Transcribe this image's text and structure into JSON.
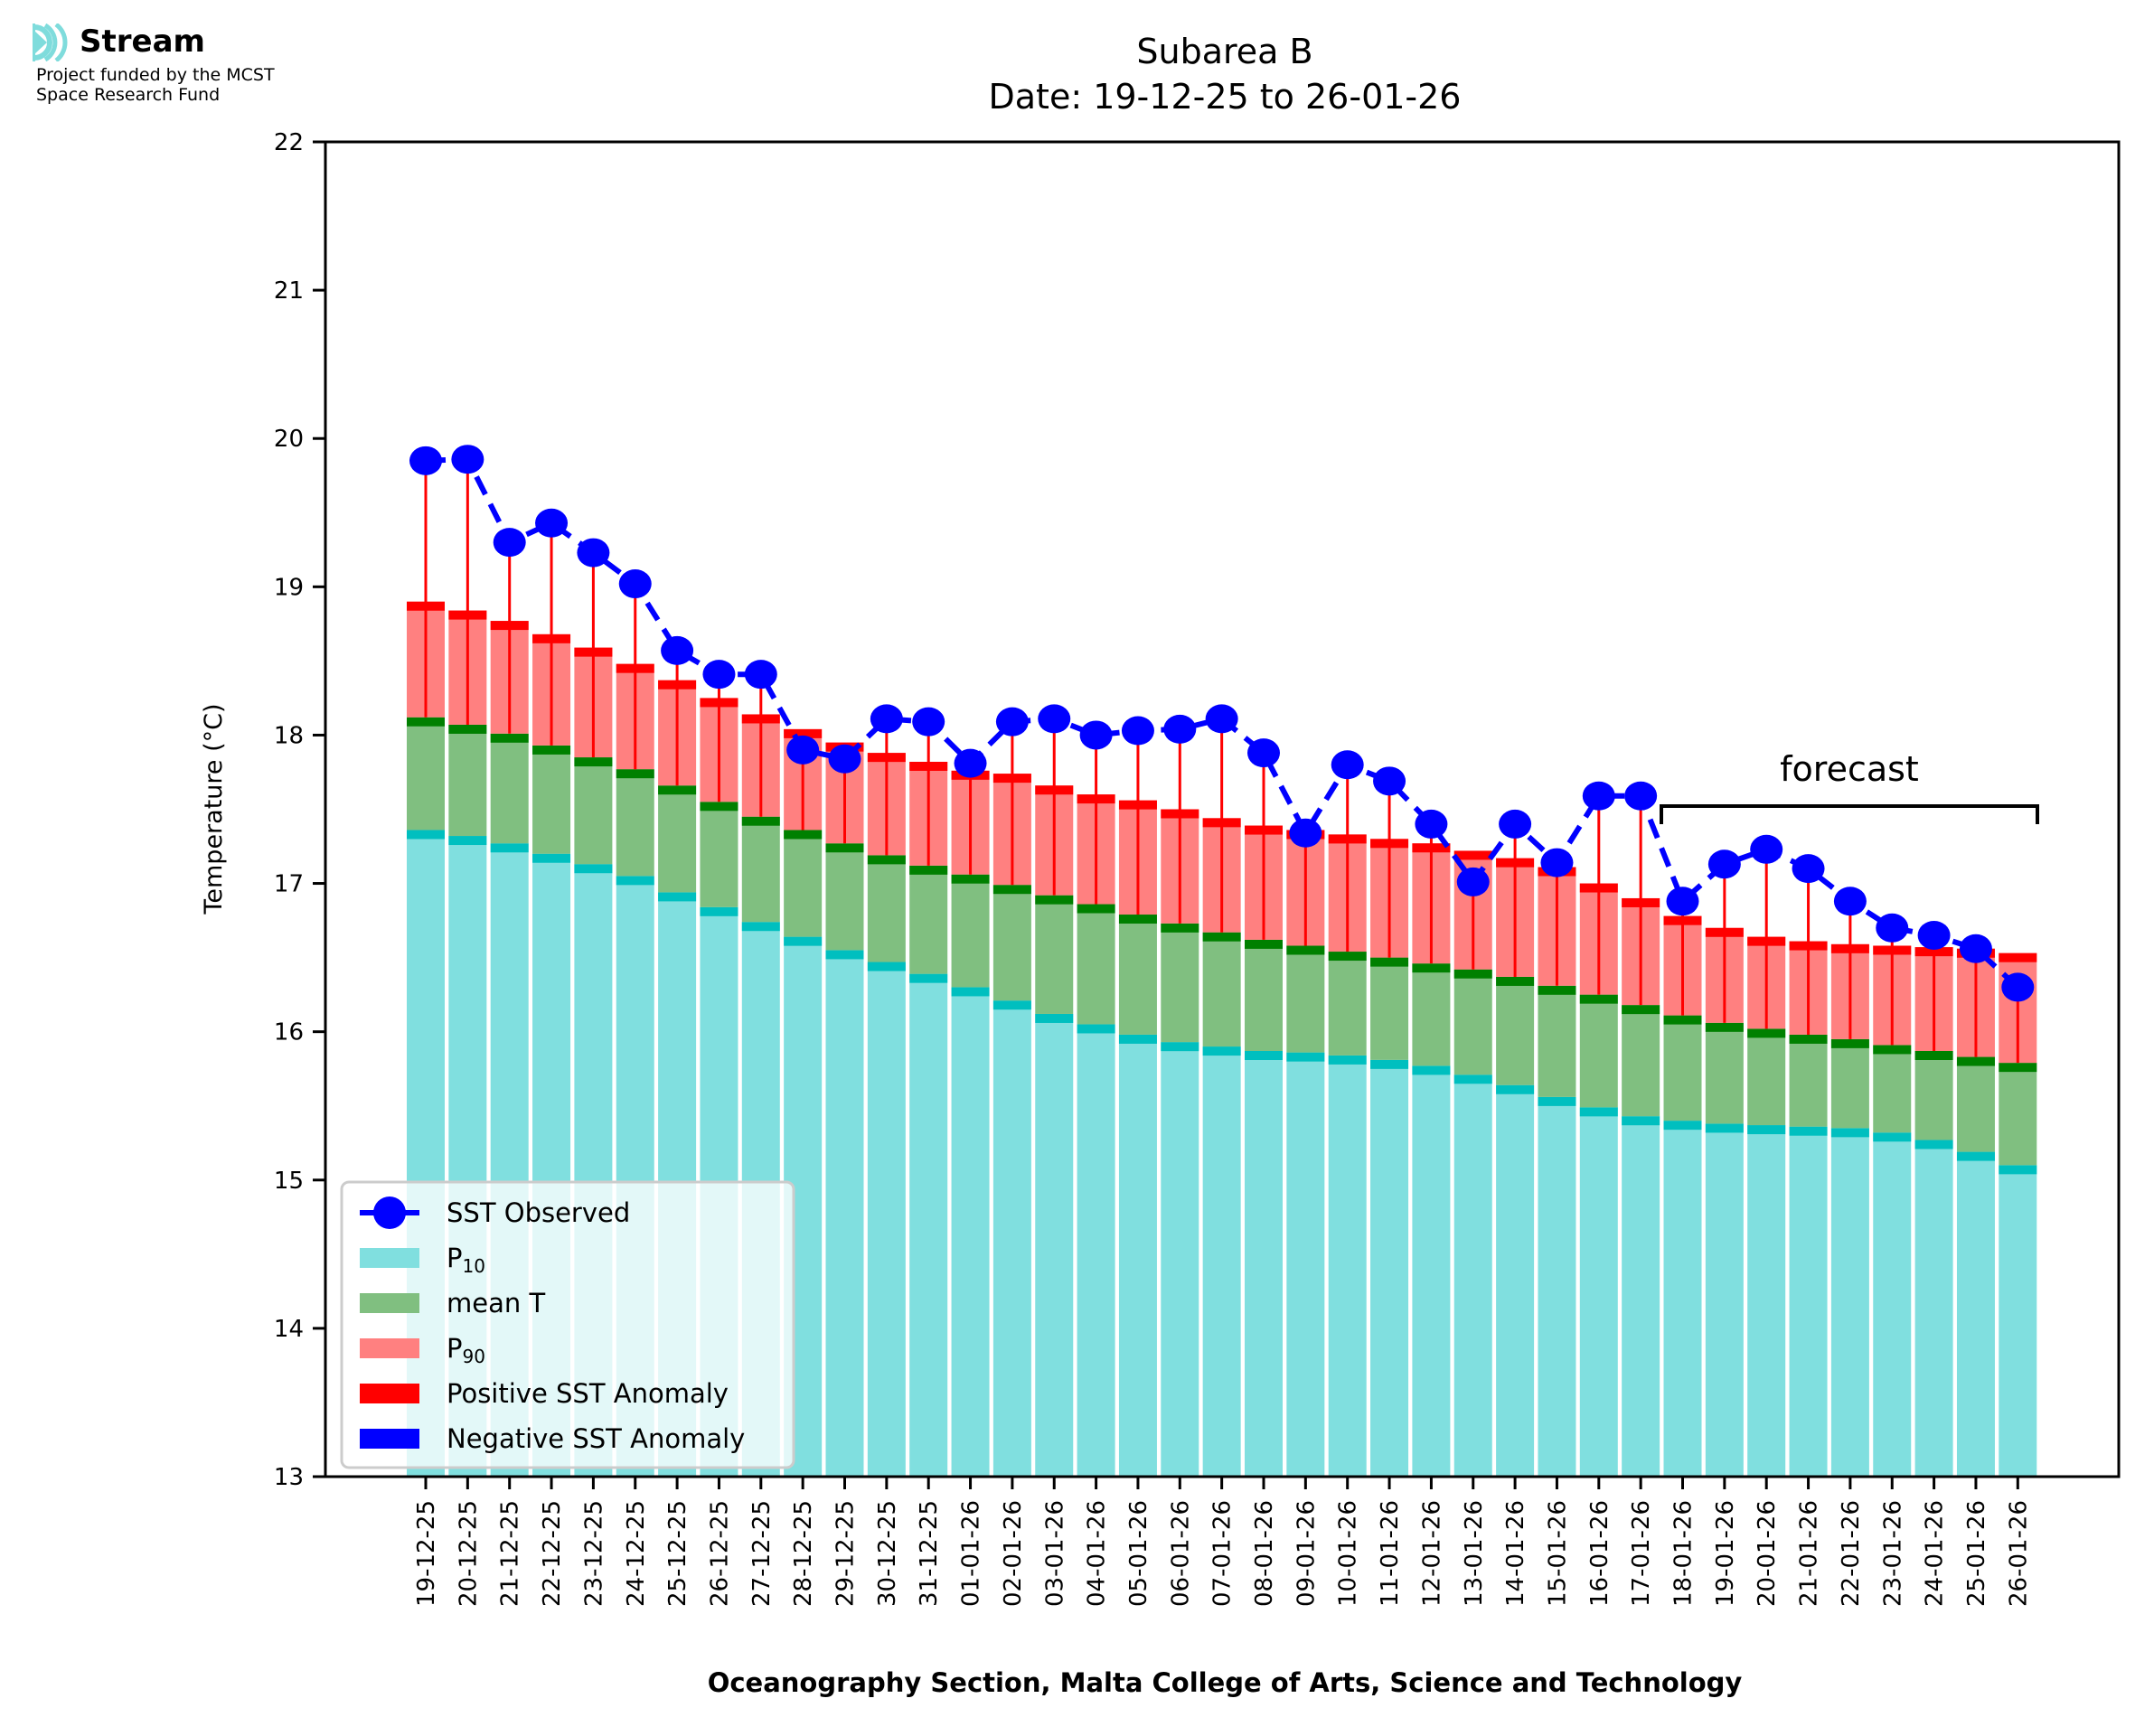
{
  "branding": {
    "logo_icon": "stream-waves-icon",
    "title": "Stream",
    "subtitle_line1": "Project funded by the MCST",
    "subtitle_line2": "Space Research Fund"
  },
  "colors": {
    "p10": "#80dfdf",
    "p10_band": "#00bfbf",
    "mean": "#80bf80",
    "mean_band": "#008000",
    "p90": "#ff8080",
    "p90_band": "#ff0000",
    "sst": "#0000ff",
    "positive_anomaly": "#ff0000",
    "negative_anomaly": "#0000ff",
    "logo": "#7fdcdc"
  },
  "chart_data": {
    "type": "bar",
    "title_line1": "Subarea B",
    "title_line2": "Date: 19-12-25 to 26-01-26",
    "xlabel": "Oceanography Section, Malta College of Arts, Science and Technology",
    "ylabel": "Temperature (°C)",
    "ylim": [
      13,
      22
    ],
    "yticks": [
      13,
      14,
      15,
      16,
      17,
      18,
      19,
      20,
      21,
      22
    ],
    "grid": false,
    "legend_position": "lower-left",
    "annotation": {
      "text": "forecast",
      "from": "18-01-26",
      "to": "26-01-26"
    },
    "categories": [
      "19-12-25",
      "20-12-25",
      "21-12-25",
      "22-12-25",
      "23-12-25",
      "24-12-25",
      "25-12-25",
      "26-12-25",
      "27-12-25",
      "28-12-25",
      "29-12-25",
      "30-12-25",
      "31-12-25",
      "01-01-26",
      "02-01-26",
      "03-01-26",
      "04-01-26",
      "05-01-26",
      "06-01-26",
      "07-01-26",
      "08-01-26",
      "09-01-26",
      "10-01-26",
      "11-01-26",
      "12-01-26",
      "13-01-26",
      "14-01-26",
      "15-01-26",
      "16-01-26",
      "17-01-26",
      "18-01-26",
      "19-01-26",
      "20-01-26",
      "21-01-26",
      "22-01-26",
      "23-01-26",
      "24-01-26",
      "25-01-26",
      "26-01-26"
    ],
    "series": [
      {
        "name": "P10",
        "legend_label": "P",
        "legend_sub": "10",
        "values": [
          17.36,
          17.32,
          17.27,
          17.2,
          17.13,
          17.05,
          16.94,
          16.84,
          16.74,
          16.64,
          16.55,
          16.47,
          16.39,
          16.3,
          16.21,
          16.12,
          16.05,
          15.98,
          15.93,
          15.9,
          15.87,
          15.86,
          15.84,
          15.81,
          15.77,
          15.71,
          15.64,
          15.56,
          15.49,
          15.43,
          15.4,
          15.38,
          15.37,
          15.36,
          15.35,
          15.32,
          15.27,
          15.19,
          15.1
        ]
      },
      {
        "name": "mean T",
        "legend_label": "mean T",
        "legend_sub": "",
        "values": [
          18.12,
          18.07,
          18.01,
          17.93,
          17.85,
          17.77,
          17.66,
          17.55,
          17.45,
          17.36,
          17.27,
          17.19,
          17.12,
          17.06,
          16.99,
          16.92,
          16.86,
          16.79,
          16.73,
          16.67,
          16.62,
          16.58,
          16.54,
          16.5,
          16.46,
          16.42,
          16.37,
          16.31,
          16.25,
          16.18,
          16.11,
          16.06,
          16.02,
          15.98,
          15.95,
          15.91,
          15.87,
          15.83,
          15.79
        ]
      },
      {
        "name": "P90",
        "legend_label": "P",
        "legend_sub": "90",
        "values": [
          18.9,
          18.84,
          18.77,
          18.68,
          18.59,
          18.48,
          18.37,
          18.25,
          18.14,
          18.04,
          17.95,
          17.88,
          17.82,
          17.76,
          17.74,
          17.66,
          17.6,
          17.56,
          17.5,
          17.44,
          17.39,
          17.36,
          17.33,
          17.3,
          17.27,
          17.22,
          17.17,
          17.11,
          17.0,
          16.9,
          16.78,
          16.7,
          16.64,
          16.61,
          16.59,
          16.58,
          16.57,
          16.56,
          16.53
        ]
      },
      {
        "name": "SST Observed",
        "legend_label": "SST Observed",
        "legend_sub": "",
        "values": [
          19.85,
          19.86,
          19.3,
          19.43,
          19.23,
          19.02,
          18.57,
          18.41,
          18.41,
          17.9,
          17.84,
          18.11,
          18.09,
          17.81,
          18.09,
          18.11,
          18.0,
          18.03,
          18.04,
          18.11,
          17.88,
          17.34,
          17.8,
          17.69,
          17.4,
          17.01,
          17.4,
          17.14,
          17.59,
          17.59,
          16.88,
          17.13,
          17.23,
          17.1,
          16.88,
          16.7,
          16.65,
          16.56,
          16.3
        ]
      }
    ],
    "legend": [
      {
        "label": "SST Observed",
        "sub": "",
        "kind": "line-marker",
        "color": "#0000ff"
      },
      {
        "label": "P",
        "sub": "10",
        "kind": "patch",
        "color": "#80dfdf"
      },
      {
        "label": "mean T",
        "sub": "",
        "kind": "patch",
        "color": "#80bf80"
      },
      {
        "label": "P",
        "sub": "90",
        "kind": "patch",
        "color": "#ff8080"
      },
      {
        "label": "Positive SST Anomaly",
        "sub": "",
        "kind": "patch",
        "color": "#ff0000"
      },
      {
        "label": "Negative SST Anomaly",
        "sub": "",
        "kind": "patch",
        "color": "#0000ff"
      }
    ]
  }
}
